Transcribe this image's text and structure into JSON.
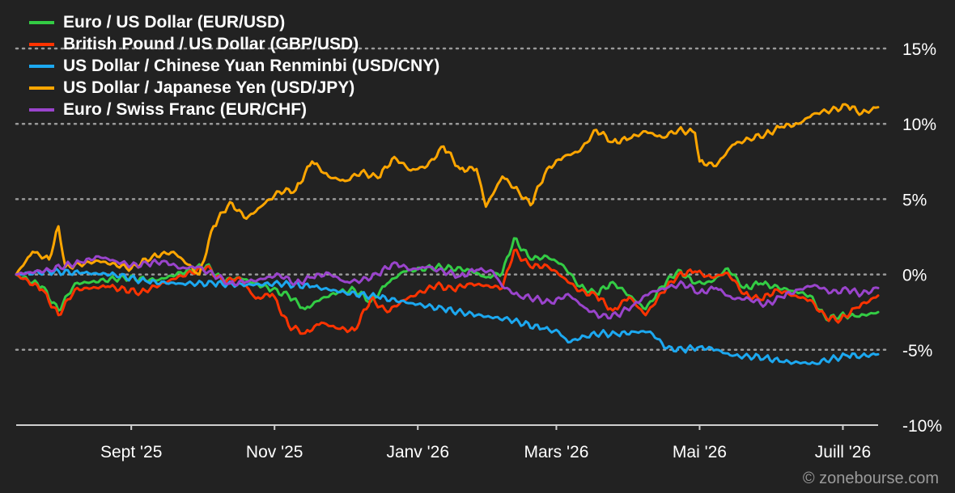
{
  "chart_data": {
    "type": "line",
    "y_unit": "%",
    "ylim": [
      -10,
      15
    ],
    "y_ticks": [
      {
        "value": 15,
        "label": "15%"
      },
      {
        "value": 10,
        "label": "10%"
      },
      {
        "value": 5,
        "label": "5%"
      },
      {
        "value": 0,
        "label": "0%"
      },
      {
        "value": -5,
        "label": "-5%"
      },
      {
        "value": -10,
        "label": "-10%"
      }
    ],
    "x_range": [
      "2025-07-14",
      "2026-07-16"
    ],
    "x_ticks": [
      {
        "date": "2025-09-01",
        "label": "Sept '25"
      },
      {
        "date": "2025-11-01",
        "label": "Nov '25"
      },
      {
        "date": "2026-01-01",
        "label": "Janv '26"
      },
      {
        "date": "2026-03-01",
        "label": "Mars '26"
      },
      {
        "date": "2026-05-01",
        "label": "Mai '26"
      },
      {
        "date": "2026-07-01",
        "label": "Juill '26"
      }
    ],
    "grid": "horizontal dotted",
    "legend_position": "top-left",
    "series": [
      {
        "name": "Euro / US Dollar (EUR/USD)",
        "color": "#33cc44",
        "points": [
          [
            "2025-07-14",
            0
          ],
          [
            "2025-07-25",
            -0.8
          ],
          [
            "2025-08-01",
            -2.4
          ],
          [
            "2025-08-08",
            -0.6
          ],
          [
            "2025-08-15",
            -0.5
          ],
          [
            "2025-08-29",
            -0.2
          ],
          [
            "2025-09-12",
            -0.4
          ],
          [
            "2025-09-26",
            0.3
          ],
          [
            "2025-10-03",
            0.6
          ],
          [
            "2025-10-10",
            -0.4
          ],
          [
            "2025-10-17",
            -0.2
          ],
          [
            "2025-10-31",
            -1.0
          ],
          [
            "2025-11-07",
            -1.4
          ],
          [
            "2025-11-14",
            -2.3
          ],
          [
            "2025-11-21",
            -1.6
          ],
          [
            "2025-11-28",
            -1.2
          ],
          [
            "2025-12-05",
            -1.0
          ],
          [
            "2025-12-12",
            -1.8
          ],
          [
            "2025-12-19",
            -0.6
          ],
          [
            "2025-12-26",
            0.2
          ],
          [
            "2026-01-09",
            0.5
          ],
          [
            "2026-01-23",
            0.3
          ],
          [
            "2026-01-30",
            -0.2
          ],
          [
            "2026-02-06",
            0.1
          ],
          [
            "2026-02-11",
            2.4
          ],
          [
            "2026-02-18",
            1.0
          ],
          [
            "2026-02-25",
            1.2
          ],
          [
            "2026-03-04",
            0.6
          ],
          [
            "2026-03-11",
            -0.8
          ],
          [
            "2026-03-18",
            -1.3
          ],
          [
            "2026-03-25",
            -0.5
          ],
          [
            "2026-04-01",
            -1.4
          ],
          [
            "2026-04-08",
            -2.3
          ],
          [
            "2026-04-15",
            -0.8
          ],
          [
            "2026-04-22",
            0.3
          ],
          [
            "2026-04-29",
            -0.6
          ],
          [
            "2026-05-06",
            -0.5
          ],
          [
            "2026-05-13",
            0.4
          ],
          [
            "2026-05-20",
            -0.9
          ],
          [
            "2026-05-27",
            -0.6
          ],
          [
            "2026-06-10",
            -1.1
          ],
          [
            "2026-06-17",
            -1.4
          ],
          [
            "2026-06-24",
            -3.0
          ],
          [
            "2026-06-30",
            -2.7
          ],
          [
            "2026-07-07",
            -2.8
          ],
          [
            "2026-07-16",
            -2.5
          ]
        ]
      },
      {
        "name": "British Pound / US Dollar (GBP/USD)",
        "color": "#ff3300",
        "points": [
          [
            "2025-07-14",
            0
          ],
          [
            "2025-07-25",
            -1.0
          ],
          [
            "2025-08-01",
            -2.7
          ],
          [
            "2025-08-08",
            -1.0
          ],
          [
            "2025-08-22",
            -0.8
          ],
          [
            "2025-09-05",
            -1.2
          ],
          [
            "2025-09-19",
            -0.3
          ],
          [
            "2025-10-03",
            0.5
          ],
          [
            "2025-10-10",
            -0.5
          ],
          [
            "2025-10-17",
            -0.2
          ],
          [
            "2025-10-24",
            -1.6
          ],
          [
            "2025-10-31",
            -1.3
          ],
          [
            "2025-11-07",
            -3.4
          ],
          [
            "2025-11-14",
            -3.9
          ],
          [
            "2025-11-21",
            -3.2
          ],
          [
            "2025-11-28",
            -3.6
          ],
          [
            "2025-12-05",
            -3.7
          ],
          [
            "2025-12-12",
            -1.6
          ],
          [
            "2025-12-19",
            -2.5
          ],
          [
            "2025-12-26",
            -1.7
          ],
          [
            "2026-01-09",
            -0.7
          ],
          [
            "2026-01-16",
            -1.0
          ],
          [
            "2026-01-23",
            -0.6
          ],
          [
            "2026-02-06",
            -0.9
          ],
          [
            "2026-02-11",
            1.6
          ],
          [
            "2026-02-18",
            0.5
          ],
          [
            "2026-02-25",
            0.6
          ],
          [
            "2026-03-04",
            -0.2
          ],
          [
            "2026-03-11",
            -1.1
          ],
          [
            "2026-03-18",
            -1.4
          ],
          [
            "2026-03-25",
            -2.4
          ],
          [
            "2026-04-01",
            -1.5
          ],
          [
            "2026-04-08",
            -2.7
          ],
          [
            "2026-04-15",
            -1.2
          ],
          [
            "2026-04-22",
            0.0
          ],
          [
            "2026-04-29",
            0.2
          ],
          [
            "2026-05-06",
            -0.2
          ],
          [
            "2026-05-13",
            0.1
          ],
          [
            "2026-05-20",
            -1.3
          ],
          [
            "2026-05-27",
            -1.7
          ],
          [
            "2026-06-03",
            -1.0
          ],
          [
            "2026-06-10",
            -1.4
          ],
          [
            "2026-06-17",
            -1.7
          ],
          [
            "2026-06-24",
            -2.9
          ],
          [
            "2026-06-30",
            -3.0
          ],
          [
            "2026-07-07",
            -2.2
          ],
          [
            "2026-07-16",
            -1.4
          ]
        ]
      },
      {
        "name": "US Dollar / Chinese Yuan Renminbi (USD/CNY)",
        "color": "#1ca8f0",
        "points": [
          [
            "2025-07-14",
            0
          ],
          [
            "2025-07-28",
            0.2
          ],
          [
            "2025-08-11",
            0.1
          ],
          [
            "2025-08-25",
            0.0
          ],
          [
            "2025-09-08",
            -0.5
          ],
          [
            "2025-09-22",
            -0.6
          ],
          [
            "2025-10-06",
            -0.6
          ],
          [
            "2025-10-20",
            -0.7
          ],
          [
            "2025-11-03",
            -0.6
          ],
          [
            "2025-11-17",
            -0.8
          ],
          [
            "2025-12-01",
            -1.2
          ],
          [
            "2025-12-15",
            -1.5
          ],
          [
            "2025-12-29",
            -1.9
          ],
          [
            "2026-01-12",
            -2.3
          ],
          [
            "2026-01-26",
            -2.7
          ],
          [
            "2026-02-09",
            -3.0
          ],
          [
            "2026-02-23",
            -3.6
          ],
          [
            "2026-03-02",
            -3.8
          ],
          [
            "2026-03-06",
            -4.5
          ],
          [
            "2026-03-13",
            -4.1
          ],
          [
            "2026-03-20",
            -3.9
          ],
          [
            "2026-03-27",
            -4.0
          ],
          [
            "2026-04-03",
            -3.8
          ],
          [
            "2026-04-10",
            -3.8
          ],
          [
            "2026-04-17",
            -4.9
          ],
          [
            "2026-04-24",
            -5.0
          ],
          [
            "2026-05-01",
            -4.8
          ],
          [
            "2026-05-08",
            -5.0
          ],
          [
            "2026-05-15",
            -5.4
          ],
          [
            "2026-05-29",
            -5.5
          ],
          [
            "2026-06-05",
            -5.8
          ],
          [
            "2026-06-19",
            -5.9
          ],
          [
            "2026-06-26",
            -5.6
          ],
          [
            "2026-07-03",
            -5.4
          ],
          [
            "2026-07-09",
            -5.4
          ],
          [
            "2026-07-16",
            -5.3
          ]
        ]
      },
      {
        "name": "US Dollar / Japanese Yen (USD/JPY)",
        "color": "#ffa600",
        "points": [
          [
            "2025-07-14",
            0
          ],
          [
            "2025-07-21",
            1.5
          ],
          [
            "2025-07-28",
            1.0
          ],
          [
            "2025-08-01",
            3.2
          ],
          [
            "2025-08-04",
            0.5
          ],
          [
            "2025-08-18",
            0.9
          ],
          [
            "2025-09-01",
            0.4
          ],
          [
            "2025-09-10",
            1.2
          ],
          [
            "2025-09-19",
            1.5
          ],
          [
            "2025-09-30",
            0.0
          ],
          [
            "2025-10-06",
            3.2
          ],
          [
            "2025-10-13",
            4.8
          ],
          [
            "2025-10-20",
            3.7
          ],
          [
            "2025-10-27",
            4.6
          ],
          [
            "2025-11-03",
            5.5
          ],
          [
            "2025-11-10",
            5.6
          ],
          [
            "2025-11-17",
            7.5
          ],
          [
            "2025-11-24",
            6.5
          ],
          [
            "2025-12-01",
            6.2
          ],
          [
            "2025-12-08",
            6.8
          ],
          [
            "2025-12-15",
            6.4
          ],
          [
            "2025-12-22",
            7.8
          ],
          [
            "2025-12-29",
            6.9
          ],
          [
            "2026-01-05",
            7.2
          ],
          [
            "2026-01-12",
            8.5
          ],
          [
            "2026-01-19",
            7.0
          ],
          [
            "2026-01-26",
            7.0
          ],
          [
            "2026-01-30",
            4.5
          ],
          [
            "2026-02-06",
            6.5
          ],
          [
            "2026-02-13",
            5.5
          ],
          [
            "2026-02-18",
            4.6
          ],
          [
            "2026-02-25",
            7.0
          ],
          [
            "2026-03-04",
            7.8
          ],
          [
            "2026-03-11",
            8.2
          ],
          [
            "2026-03-18",
            9.6
          ],
          [
            "2026-03-25",
            8.8
          ],
          [
            "2026-04-01",
            9.0
          ],
          [
            "2026-04-08",
            9.5
          ],
          [
            "2026-04-15",
            9.1
          ],
          [
            "2026-04-22",
            9.6
          ],
          [
            "2026-04-29",
            9.4
          ],
          [
            "2026-05-01",
            7.5
          ],
          [
            "2026-05-08",
            7.2
          ],
          [
            "2026-05-15",
            8.6
          ],
          [
            "2026-05-22",
            9.0
          ],
          [
            "2026-05-29",
            9.3
          ],
          [
            "2026-06-05",
            9.8
          ],
          [
            "2026-06-12",
            10.0
          ],
          [
            "2026-06-19",
            10.7
          ],
          [
            "2026-06-26",
            10.9
          ],
          [
            "2026-07-03",
            11.2
          ],
          [
            "2026-07-09",
            10.7
          ],
          [
            "2026-07-16",
            11.1
          ]
        ]
      },
      {
        "name": "Euro / Swiss Franc (EUR/CHF)",
        "color": "#9a44cc",
        "points": [
          [
            "2025-07-14",
            0
          ],
          [
            "2025-07-28",
            0.3
          ],
          [
            "2025-08-04",
            0.6
          ],
          [
            "2025-08-11",
            0.8
          ],
          [
            "2025-08-18",
            1.2
          ],
          [
            "2025-08-25",
            0.9
          ],
          [
            "2025-09-01",
            0.6
          ],
          [
            "2025-09-08",
            0.7
          ],
          [
            "2025-09-15",
            0.9
          ],
          [
            "2025-09-22",
            0.4
          ],
          [
            "2025-09-29",
            0.5
          ],
          [
            "2025-10-06",
            0.0
          ],
          [
            "2025-10-13",
            -0.6
          ],
          [
            "2025-10-20",
            -0.5
          ],
          [
            "2025-10-27",
            -0.3
          ],
          [
            "2025-11-03",
            0.0
          ],
          [
            "2025-11-10",
            -0.6
          ],
          [
            "2025-11-17",
            -0.2
          ],
          [
            "2025-11-24",
            0.1
          ],
          [
            "2025-12-01",
            -0.5
          ],
          [
            "2025-12-08",
            -0.4
          ],
          [
            "2025-12-15",
            0.0
          ],
          [
            "2025-12-22",
            0.8
          ],
          [
            "2025-12-29",
            0.3
          ],
          [
            "2026-01-05",
            0.5
          ],
          [
            "2026-01-12",
            0.2
          ],
          [
            "2026-01-19",
            -0.1
          ],
          [
            "2026-01-26",
            0.3
          ],
          [
            "2026-02-02",
            0.2
          ],
          [
            "2026-02-06",
            -0.8
          ],
          [
            "2026-02-13",
            -1.4
          ],
          [
            "2026-02-20",
            -1.6
          ],
          [
            "2026-02-27",
            -1.9
          ],
          [
            "2026-03-06",
            -1.3
          ],
          [
            "2026-03-13",
            -2.2
          ],
          [
            "2026-03-20",
            -2.8
          ],
          [
            "2026-03-27",
            -2.7
          ],
          [
            "2026-04-03",
            -2.0
          ],
          [
            "2026-04-10",
            -1.2
          ],
          [
            "2026-04-17",
            -0.9
          ],
          [
            "2026-04-24",
            -0.6
          ],
          [
            "2026-05-01",
            -1.2
          ],
          [
            "2026-05-08",
            -0.9
          ],
          [
            "2026-05-15",
            -1.6
          ],
          [
            "2026-05-22",
            -1.6
          ],
          [
            "2026-05-29",
            -2.0
          ],
          [
            "2026-06-05",
            -1.5
          ],
          [
            "2026-06-12",
            -1.0
          ],
          [
            "2026-06-19",
            -0.7
          ],
          [
            "2026-06-26",
            -1.2
          ],
          [
            "2026-07-03",
            -1.0
          ],
          [
            "2026-07-09",
            -1.3
          ],
          [
            "2026-07-16",
            -0.9
          ]
        ]
      }
    ]
  },
  "watermark": "© zonebourse.com"
}
